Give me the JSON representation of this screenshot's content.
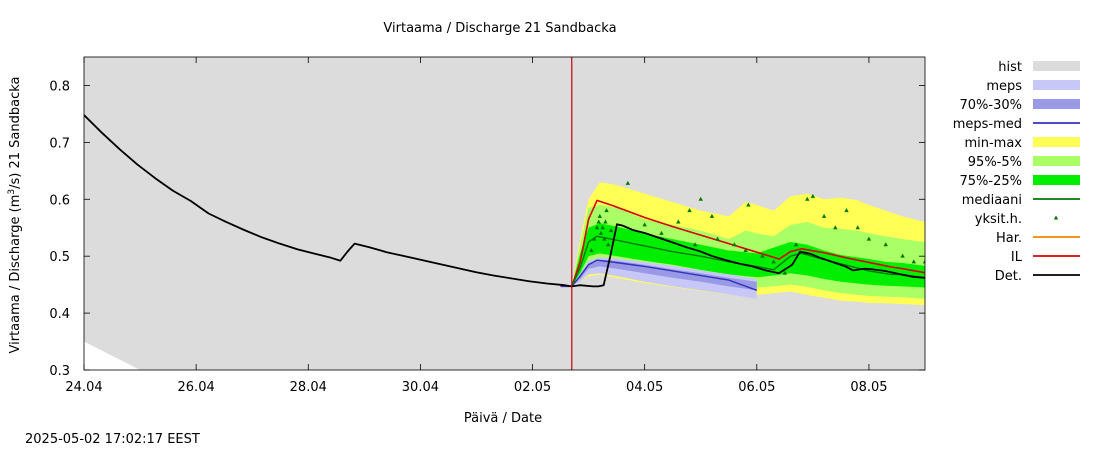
{
  "chart_data": {
    "type": "line",
    "title": "Virtaama / Discharge  21 Sandbacka",
    "xlabel": "Päivä / Date",
    "ylabel_main": "Virtaama / Discharge (m",
    "ylabel_sup": "3",
    "ylabel_tail": "/s)  21  Sandbacka",
    "timestamp": "2025-05-02 17:02:17 EEST",
    "x_start": "2025-04-24",
    "x_end": "2025-05-09",
    "ylim": [
      0.3,
      0.85
    ],
    "yticks": [
      0.3,
      0.4,
      0.5,
      0.6,
      0.7,
      0.8
    ],
    "xticks": [
      {
        "day": 0,
        "label": "24.04"
      },
      {
        "day": 2,
        "label": "26.04"
      },
      {
        "day": 4,
        "label": "28.04"
      },
      {
        "day": 6,
        "label": "30.04"
      },
      {
        "day": 8,
        "label": "02.05"
      },
      {
        "day": 10,
        "label": "04.05"
      },
      {
        "day": 12,
        "label": "06.05"
      },
      {
        "day": 14,
        "label": "08.05"
      }
    ],
    "forecast_start_day": 8.7,
    "colors": {
      "hist": "#dcdcdc",
      "meps": "#c8c8f8",
      "meps_70_30": "#9999e6",
      "meps_med": "#3333bb",
      "min_max": "#ffff55",
      "p95_5": "#aaff66",
      "p75_25": "#00ee00",
      "mediaani": "#007700",
      "yksit": "#007700",
      "har": "#ee8800",
      "il": "#dd0000",
      "det": "#000000",
      "now_line": "#cc0000"
    },
    "legend": [
      {
        "key": "hist",
        "label": "hist",
        "kind": "box"
      },
      {
        "key": "meps",
        "label": "meps",
        "kind": "box"
      },
      {
        "key": "meps_70_30",
        "label": "70%-30%",
        "kind": "box"
      },
      {
        "key": "meps_med",
        "label": "meps-med",
        "kind": "line"
      },
      {
        "key": "min_max",
        "label": "min-max",
        "kind": "box"
      },
      {
        "key": "p95_5",
        "label": "95%-5%",
        "kind": "box"
      },
      {
        "key": "p75_25",
        "label": "75%-25%",
        "kind": "box"
      },
      {
        "key": "mediaani",
        "label": "mediaani",
        "kind": "line"
      },
      {
        "key": "yksit",
        "label": "yksit.h.",
        "kind": "point"
      },
      {
        "key": "har",
        "label": "Har.",
        "kind": "line"
      },
      {
        "key": "il",
        "label": "IL",
        "kind": "line"
      },
      {
        "key": "det",
        "label": "Det.",
        "kind": "line"
      }
    ],
    "series": {
      "hist_upper": [
        [
          0,
          0.85
        ],
        [
          15,
          0.85
        ]
      ],
      "hist_lower": [
        [
          0,
          0.35
        ],
        [
          1,
          0.3
        ],
        [
          15,
          0.3
        ]
      ],
      "det": [
        [
          0,
          0.748
        ],
        [
          0.5,
          0.717
        ],
        [
          1,
          0.688
        ],
        [
          1.5,
          0.661
        ],
        [
          2,
          0.637
        ],
        [
          2.5,
          0.615
        ],
        [
          3,
          0.597
        ],
        [
          3.5,
          0.575
        ],
        [
          4,
          0.56
        ],
        [
          4.5,
          0.546
        ],
        [
          5,
          0.533
        ],
        [
          5.5,
          0.522
        ],
        [
          6,
          0.512
        ],
        [
          6.5,
          0.504
        ],
        [
          6.9,
          0.498
        ],
        [
          7.2,
          0.492
        ],
        [
          7.4,
          0.508
        ],
        [
          7.6,
          0.522
        ],
        [
          8,
          0.516
        ],
        [
          8.5,
          0.507
        ],
        [
          9,
          0.5
        ],
        [
          9.5,
          0.493
        ],
        [
          10,
          0.486
        ],
        [
          10.5,
          0.479
        ],
        [
          11,
          0.472
        ],
        [
          11.5,
          0.466
        ],
        [
          12,
          0.461
        ],
        [
          12.5,
          0.456
        ],
        [
          13,
          0.452
        ],
        [
          13.5,
          0.449
        ],
        [
          13.7,
          0.447
        ],
        [
          14,
          0.449
        ],
        [
          14.5,
          0.447
        ],
        [
          14.7,
          0.447
        ],
        [
          14.9,
          0.449
        ],
        [
          15.15,
          0.5
        ],
        [
          15.4,
          0.556
        ],
        [
          15.6,
          0.554
        ],
        [
          16,
          0.546
        ],
        [
          16.5,
          0.54
        ],
        [
          17,
          0.532
        ],
        [
          17.5,
          0.524
        ],
        [
          18,
          0.516
        ],
        [
          18.5,
          0.509
        ],
        [
          19,
          0.5
        ],
        [
          19.5,
          0.493
        ],
        [
          20,
          0.487
        ],
        [
          20.5,
          0.482
        ],
        [
          21,
          0.475
        ],
        [
          21.5,
          0.47
        ],
        [
          22,
          0.485
        ],
        [
          22.3,
          0.508
        ],
        [
          22.7,
          0.504
        ],
        [
          23,
          0.498
        ],
        [
          23.5,
          0.49
        ],
        [
          24,
          0.482
        ],
        [
          24.3,
          0.475
        ],
        [
          24.7,
          0.478
        ],
        [
          25,
          0.477
        ],
        [
          25.5,
          0.474
        ],
        [
          26,
          0.469
        ],
        [
          26.5,
          0.464
        ],
        [
          27,
          0.462
        ]
      ],
      "il": [
        [
          8.5,
          0.447
        ],
        [
          8.7,
          0.447
        ],
        [
          8.85,
          0.49
        ],
        [
          9.0,
          0.565
        ],
        [
          9.15,
          0.598
        ],
        [
          9.4,
          0.59
        ],
        [
          10,
          0.568
        ],
        [
          10.5,
          0.552
        ],
        [
          11,
          0.537
        ],
        [
          11.5,
          0.522
        ],
        [
          12,
          0.507
        ],
        [
          12.4,
          0.495
        ],
        [
          12.6,
          0.508
        ],
        [
          12.8,
          0.513
        ],
        [
          13.2,
          0.506
        ],
        [
          13.6,
          0.497
        ],
        [
          14,
          0.489
        ],
        [
          14.4,
          0.481
        ],
        [
          14.6,
          0.478
        ],
        [
          15,
          0.471
        ],
        [
          15.5,
          0.47
        ]
      ],
      "meps_med": [
        [
          8.5,
          0.447
        ],
        [
          8.7,
          0.447
        ],
        [
          8.85,
          0.465
        ],
        [
          9.0,
          0.485
        ],
        [
          9.15,
          0.493
        ],
        [
          9.4,
          0.49
        ],
        [
          10,
          0.482
        ],
        [
          10.5,
          0.474
        ],
        [
          11,
          0.466
        ],
        [
          11.5,
          0.458
        ],
        [
          12,
          0.44
        ],
        [
          12,
          0.44
        ]
      ],
      "mediaani": [
        [
          8.7,
          0.447
        ],
        [
          8.85,
          0.48
        ],
        [
          9.0,
          0.525
        ],
        [
          9.15,
          0.535
        ],
        [
          9.5,
          0.528
        ],
        [
          10,
          0.518
        ],
        [
          10.5,
          0.508
        ],
        [
          11,
          0.5
        ],
        [
          11.5,
          0.49
        ],
        [
          12,
          0.482
        ],
        [
          12.3,
          0.476
        ],
        [
          12.6,
          0.5
        ],
        [
          12.8,
          0.505
        ],
        [
          13.2,
          0.494
        ],
        [
          13.6,
          0.484
        ],
        [
          14,
          0.474
        ],
        [
          14.4,
          0.468
        ],
        [
          14.6,
          0.468
        ],
        [
          15,
          0.462
        ],
        [
          15.5,
          0.458
        ]
      ],
      "band_minmax": {
        "x": [
          8.7,
          8.85,
          9.0,
          9.2,
          9.5,
          10,
          10.5,
          11,
          11.5,
          11.8,
          12,
          12.3,
          12.6,
          12.9,
          13.2,
          13.5,
          13.8,
          14,
          14.3,
          14.6,
          15,
          15.5
        ],
        "lo": [
          0.447,
          0.455,
          0.465,
          0.468,
          0.462,
          0.453,
          0.446,
          0.439,
          0.433,
          0.43,
          0.432,
          0.435,
          0.438,
          0.432,
          0.427,
          0.422,
          0.42,
          0.418,
          0.417,
          0.416,
          0.414,
          0.41
        ],
        "hi": [
          0.447,
          0.53,
          0.6,
          0.63,
          0.625,
          0.61,
          0.595,
          0.58,
          0.57,
          0.595,
          0.59,
          0.58,
          0.605,
          0.61,
          0.6,
          0.603,
          0.598,
          0.59,
          0.58,
          0.57,
          0.56,
          0.55
        ]
      },
      "band_95_5": {
        "x": [
          8.7,
          8.85,
          9.0,
          9.2,
          9.5,
          10,
          10.5,
          11,
          11.5,
          11.8,
          12,
          12.3,
          12.6,
          12.9,
          13.2,
          13.5,
          13.8,
          14,
          14.3,
          14.6,
          15,
          15.5
        ],
        "lo": [
          0.447,
          0.46,
          0.478,
          0.48,
          0.474,
          0.465,
          0.458,
          0.452,
          0.446,
          0.444,
          0.445,
          0.447,
          0.45,
          0.446,
          0.44,
          0.435,
          0.432,
          0.43,
          0.429,
          0.428,
          0.425,
          0.42
        ],
        "hi": [
          0.447,
          0.52,
          0.585,
          0.59,
          0.585,
          0.565,
          0.555,
          0.545,
          0.53,
          0.545,
          0.54,
          0.535,
          0.555,
          0.56,
          0.55,
          0.548,
          0.545,
          0.54,
          0.535,
          0.53,
          0.525,
          0.52
        ]
      },
      "band_75_25": {
        "x": [
          8.7,
          8.85,
          9.0,
          9.2,
          9.5,
          10,
          10.5,
          11,
          11.5,
          11.8,
          12,
          12.3,
          12.6,
          12.9,
          13.2,
          13.5,
          13.8,
          14,
          14.3,
          14.6,
          15,
          15.5
        ],
        "lo": [
          0.447,
          0.47,
          0.5,
          0.505,
          0.5,
          0.492,
          0.485,
          0.476,
          0.468,
          0.465,
          0.463,
          0.466,
          0.47,
          0.466,
          0.46,
          0.455,
          0.452,
          0.45,
          0.448,
          0.447,
          0.445,
          0.44
        ],
        "hi": [
          0.447,
          0.505,
          0.55,
          0.558,
          0.552,
          0.54,
          0.53,
          0.52,
          0.51,
          0.507,
          0.505,
          0.515,
          0.525,
          0.52,
          0.51,
          0.502,
          0.498,
          0.495,
          0.49,
          0.488,
          0.483,
          0.48
        ]
      },
      "band_meps": {
        "x": [
          8.7,
          8.85,
          9.0,
          9.2,
          9.5,
          10,
          10.5,
          11,
          11.5,
          12
        ],
        "lo": [
          0.447,
          0.455,
          0.468,
          0.47,
          0.465,
          0.455,
          0.447,
          0.44,
          0.433,
          0.425
        ],
        "hi": [
          0.447,
          0.47,
          0.492,
          0.498,
          0.496,
          0.49,
          0.483,
          0.475,
          0.468,
          0.46
        ]
      },
      "band_meps_70_30": {
        "x": [
          8.7,
          8.85,
          9.0,
          9.2,
          9.5,
          10,
          10.5,
          11,
          11.5,
          12
        ],
        "lo": [
          0.447,
          0.46,
          0.478,
          0.482,
          0.478,
          0.47,
          0.462,
          0.455,
          0.447,
          0.44
        ],
        "hi": [
          0.447,
          0.468,
          0.488,
          0.494,
          0.492,
          0.485,
          0.477,
          0.47,
          0.462,
          0.455
        ]
      },
      "points": [
        [
          9.15,
          0.55
        ],
        [
          9.18,
          0.56
        ],
        [
          9.2,
          0.57
        ],
        [
          9.22,
          0.54
        ],
        [
          9.25,
          0.55
        ],
        [
          9.28,
          0.53
        ],
        [
          9.3,
          0.56
        ],
        [
          9.32,
          0.58
        ],
        [
          9.35,
          0.52
        ],
        [
          9.1,
          0.53
        ],
        [
          9.05,
          0.51
        ],
        [
          9.4,
          0.545
        ],
        [
          9.7,
          0.628
        ],
        [
          10.0,
          0.555
        ],
        [
          10.3,
          0.54
        ],
        [
          10.6,
          0.56
        ],
        [
          10.8,
          0.58
        ],
        [
          11.0,
          0.6
        ],
        [
          11.2,
          0.57
        ],
        [
          10.9,
          0.52
        ],
        [
          11.3,
          0.53
        ],
        [
          11.6,
          0.52
        ],
        [
          11.8,
          0.51
        ],
        [
          11.85,
          0.59
        ],
        [
          12.1,
          0.5
        ],
        [
          12.3,
          0.49
        ],
        [
          12.5,
          0.47
        ],
        [
          12.7,
          0.52
        ],
        [
          12.9,
          0.6
        ],
        [
          13.0,
          0.605
        ],
        [
          13.2,
          0.57
        ],
        [
          13.4,
          0.55
        ],
        [
          13.6,
          0.58
        ],
        [
          13.8,
          0.55
        ],
        [
          14.0,
          0.53
        ],
        [
          14.3,
          0.52
        ],
        [
          14.6,
          0.5
        ],
        [
          14.8,
          0.49
        ],
        [
          15.0,
          0.49
        ],
        [
          15.2,
          0.515
        ],
        [
          15.4,
          0.535
        ]
      ]
    }
  }
}
